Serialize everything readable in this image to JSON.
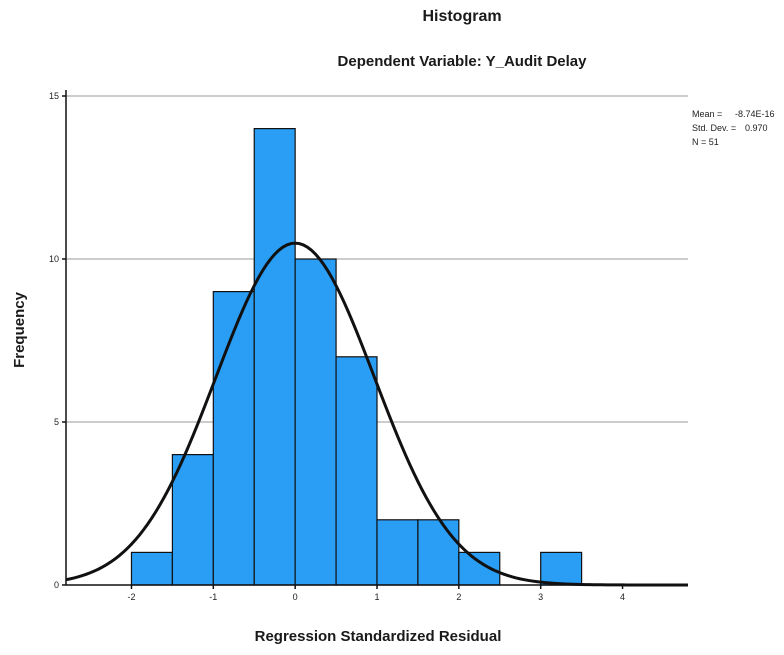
{
  "chart_data": {
    "type": "bar",
    "title": "Histogram",
    "subtitle": "Dependent Variable: Y_Audit Delay",
    "xlabel": "Regression Standardized Residual",
    "ylabel": "Frequency",
    "xlim": [
      -2.8,
      4.8
    ],
    "ylim": [
      0,
      15
    ],
    "x_ticks": [
      -2,
      -1,
      0,
      1,
      2,
      3,
      4
    ],
    "y_ticks": [
      0,
      5,
      10,
      15
    ],
    "grid": true,
    "bins": [
      {
        "start": -2.0,
        "end": -1.5,
        "value": 1
      },
      {
        "start": -1.5,
        "end": -1.0,
        "value": 4
      },
      {
        "start": -1.0,
        "end": -0.5,
        "value": 9
      },
      {
        "start": -0.5,
        "end": 0.0,
        "value": 14
      },
      {
        "start": 0.0,
        "end": 0.5,
        "value": 10
      },
      {
        "start": 0.5,
        "end": 1.0,
        "value": 7
      },
      {
        "start": 1.0,
        "end": 1.5,
        "value": 2
      },
      {
        "start": 1.5,
        "end": 2.0,
        "value": 2
      },
      {
        "start": 2.0,
        "end": 2.5,
        "value": 1
      },
      {
        "start": 3.0,
        "end": 3.5,
        "value": 1
      }
    ],
    "normal_curve": {
      "mean": 0,
      "std_dev": 0.97,
      "n": 51,
      "bin_width": 0.5
    },
    "colors": {
      "bar": "#2a9df4",
      "curve": "#111111",
      "grid": "#9a9a9a"
    },
    "stats": {
      "mean_label": "Mean =",
      "mean_value": "-8.74E-16",
      "std_label": "Std. Dev. =",
      "std_value": "0.970",
      "n_label": "N = 51"
    }
  }
}
